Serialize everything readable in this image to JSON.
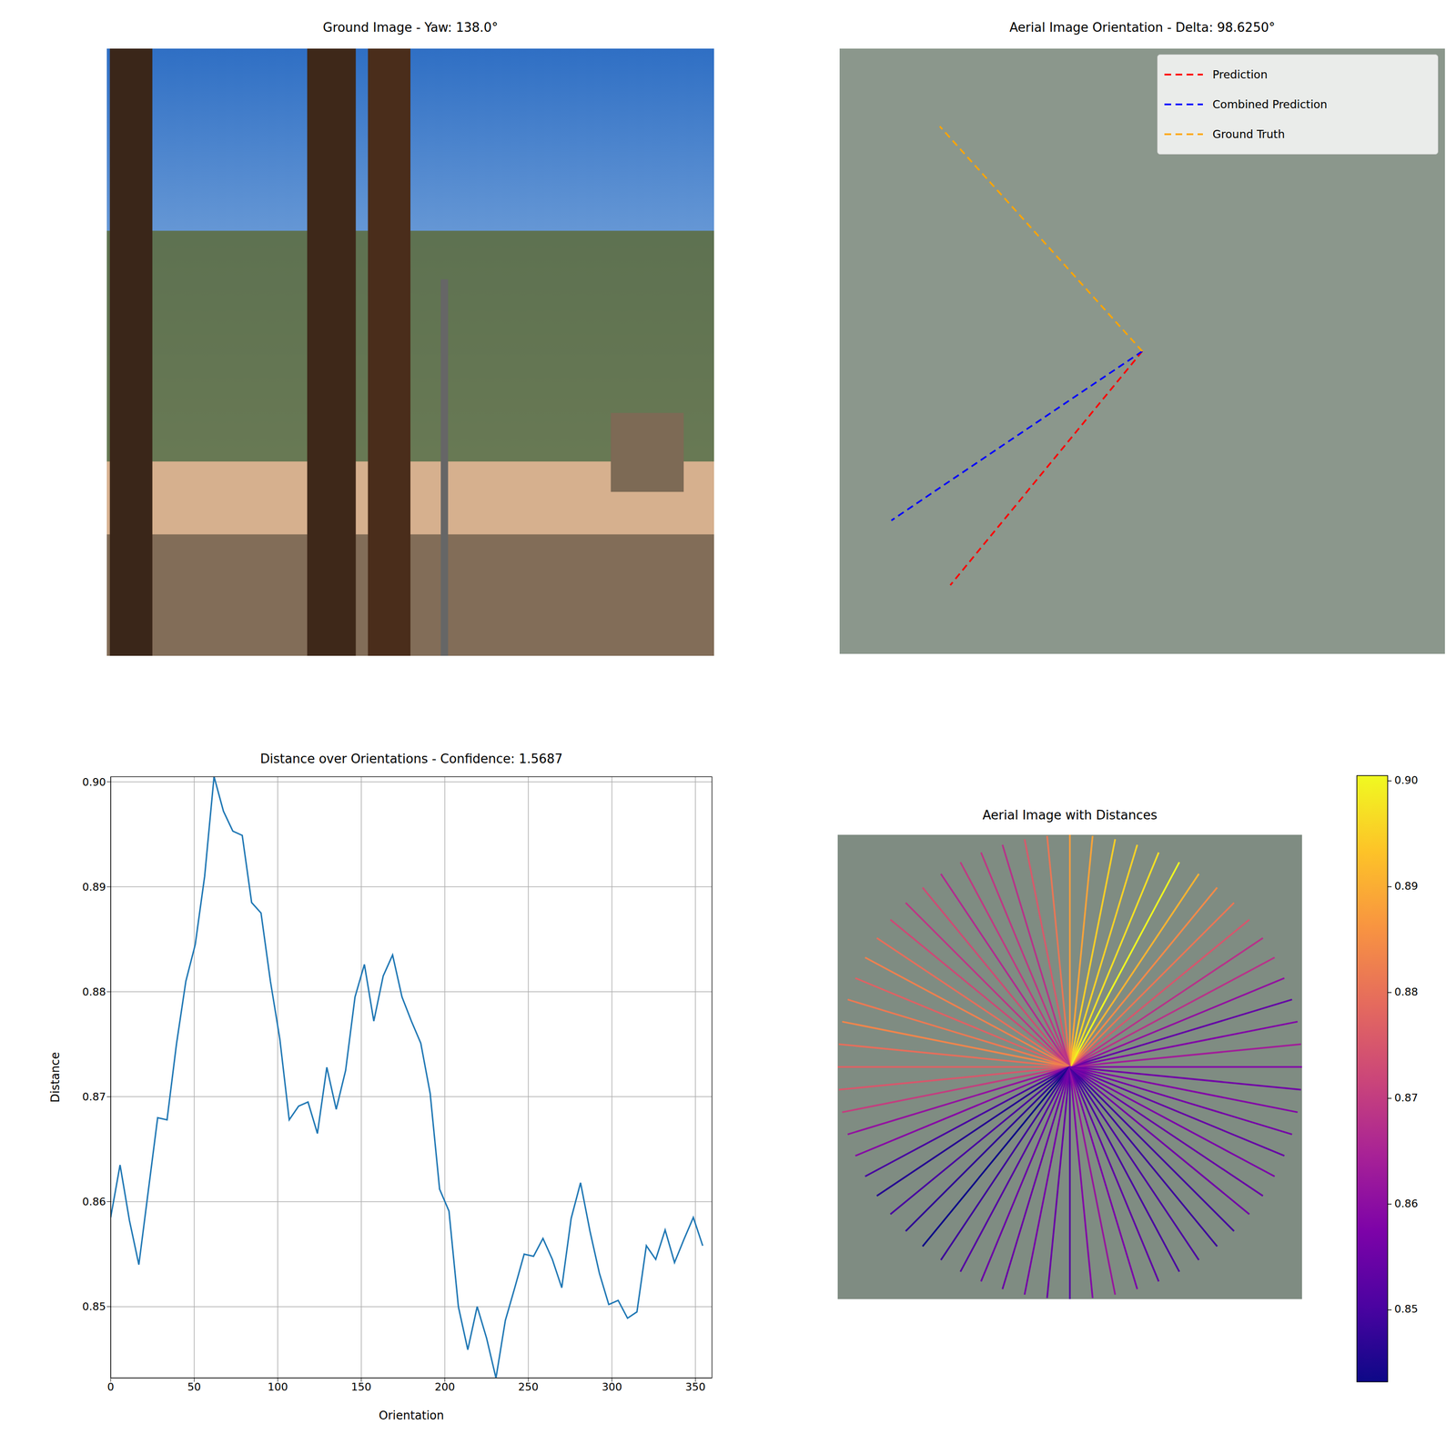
{
  "chart_data": [
    {
      "type": "image",
      "title": "Ground Image - Yaw: 138.0°"
    },
    {
      "type": "orientation",
      "title": "Aerial Image Orientation - Delta: 98.6250°",
      "legend": "upper right",
      "tick_labels": false,
      "series": [
        {
          "name": "Prediction",
          "color": "#ff0000",
          "line_style": "dashed",
          "angle": 230.625
        },
        {
          "name": "Combined Prediction",
          "color": "#0000ff",
          "line_style": "dashed",
          "angle": 214
        },
        {
          "name": "Ground Truth",
          "color": "#ffa500",
          "line_style": "dashed",
          "angle": 132
        }
      ]
    },
    {
      "type": "line",
      "title": "Distance over Orientations - Confidence: 1.5687",
      "x_label": "Orientation",
      "y_label": "Distance",
      "x": [
        0,
        5.625,
        11.25,
        16.875,
        22.5,
        28.125,
        33.75,
        39.375,
        45,
        50.625,
        56.25,
        61.875,
        67.5,
        73.125,
        78.75,
        84.375,
        90,
        95.625,
        101.25,
        106.875,
        112.5,
        118.125,
        123.75,
        129.375,
        135,
        140.625,
        146.25,
        151.875,
        157.5,
        163.125,
        168.75,
        174.375,
        180,
        185.625,
        191.25,
        196.875,
        202.5,
        208.125,
        213.75,
        219.375,
        225,
        230.625,
        236.25,
        241.875,
        247.5,
        253.125,
        258.75,
        264.375,
        270,
        275.625,
        281.25,
        286.875,
        292.5,
        298.125,
        303.75,
        309.375,
        315,
        320.625,
        326.25,
        331.875,
        337.5,
        343.125,
        348.75,
        354.375
      ],
      "values": [
        0.8585,
        0.8635,
        0.8582,
        0.854,
        0.861,
        0.868,
        0.8678,
        0.875,
        0.881,
        0.8845,
        0.891,
        0.9005,
        0.8972,
        0.8953,
        0.8949,
        0.8885,
        0.8875,
        0.881,
        0.8755,
        0.8678,
        0.8691,
        0.8695,
        0.8665,
        0.8728,
        0.8688,
        0.8725,
        0.8795,
        0.8826,
        0.8772,
        0.8815,
        0.8835,
        0.8795,
        0.8772,
        0.8751,
        0.8703,
        0.8612,
        0.8591,
        0.85,
        0.8459,
        0.85,
        0.847,
        0.8432,
        0.8487,
        0.8518,
        0.855,
        0.8548,
        0.8565,
        0.8545,
        0.8518,
        0.8584,
        0.8618,
        0.8572,
        0.8532,
        0.8502,
        0.8506,
        0.8489,
        0.8495,
        0.8558,
        0.8545,
        0.8573,
        0.8542,
        0.8564,
        0.8585,
        0.8558
      ],
      "color": "#1f77b4",
      "xlim": [
        0,
        360
      ],
      "ylim": [
        0.8432,
        0.9005
      ],
      "xticks": [
        0,
        50,
        100,
        150,
        200,
        250,
        300,
        350
      ],
      "yticks": [
        0.85,
        0.86,
        0.87,
        0.88,
        0.89,
        {
          "value": 0.9,
          "label": "0.90"
        }
      ],
      "grid": true
    },
    {
      "type": "radial",
      "title": "Aerial Image with Distances",
      "tick_labels": false,
      "x": [
        0,
        5.625,
        11.25,
        16.875,
        22.5,
        28.125,
        33.75,
        39.375,
        45,
        50.625,
        56.25,
        61.875,
        67.5,
        73.125,
        78.75,
        84.375,
        90,
        95.625,
        101.25,
        106.875,
        112.5,
        118.125,
        123.75,
        129.375,
        135,
        140.625,
        146.25,
        151.875,
        157.5,
        163.125,
        168.75,
        174.375,
        180,
        185.625,
        191.25,
        196.875,
        202.5,
        208.125,
        213.75,
        219.375,
        225,
        230.625,
        236.25,
        241.875,
        247.5,
        253.125,
        258.75,
        264.375,
        270,
        275.625,
        281.25,
        286.875,
        292.5,
        298.125,
        303.75,
        309.375,
        315,
        320.625,
        326.25,
        331.875,
        337.5,
        343.125,
        348.75,
        354.375
      ],
      "values": [
        0.8585,
        0.8635,
        0.8582,
        0.854,
        0.861,
        0.868,
        0.8678,
        0.875,
        0.881,
        0.8845,
        0.891,
        0.9005,
        0.8972,
        0.8953,
        0.8949,
        0.8885,
        0.8875,
        0.881,
        0.8755,
        0.8678,
        0.8691,
        0.8695,
        0.8665,
        0.8728,
        0.8688,
        0.8725,
        0.8795,
        0.8826,
        0.8772,
        0.8815,
        0.8835,
        0.8795,
        0.8772,
        0.8751,
        0.8703,
        0.8612,
        0.8591,
        0.85,
        0.8459,
        0.85,
        0.847,
        0.8432,
        0.8487,
        0.8518,
        0.855,
        0.8548,
        0.8565,
        0.8545,
        0.8518,
        0.8584,
        0.8618,
        0.8572,
        0.8532,
        0.8502,
        0.8506,
        0.8489,
        0.8495,
        0.8558,
        0.8545,
        0.8573,
        0.8542,
        0.8564,
        0.8585,
        0.8558
      ],
      "colorbar": {
        "range": [
          0.8432,
          0.9005
        ],
        "ticks": [
          0.85,
          0.86,
          0.87,
          0.88,
          0.89,
          {
            "value": 0.9,
            "label": "0.90"
          }
        ]
      }
    }
  ]
}
